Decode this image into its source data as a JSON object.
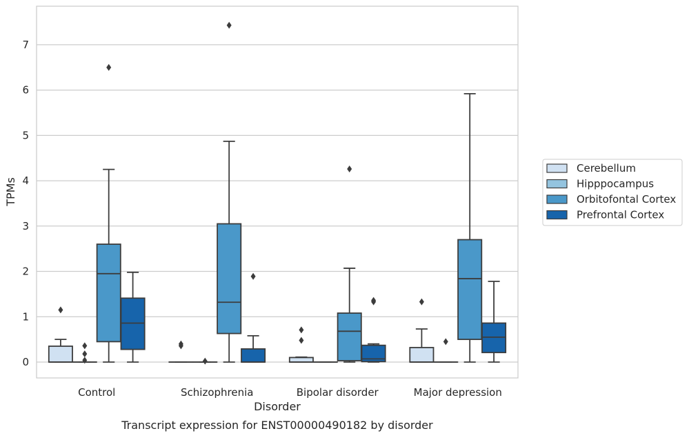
{
  "chart_data": {
    "type": "box",
    "title": "",
    "caption": "Transcript expression for ENST00000490182 by disorder",
    "xlabel": "Disorder",
    "ylabel": "TPMs",
    "ylim": [
      -0.35,
      7.85
    ],
    "yticks": [
      0,
      1,
      2,
      3,
      4,
      5,
      6,
      7
    ],
    "grid": "horizontal",
    "legend_position": "right-center",
    "categories": [
      "Control",
      "Schizophrenia",
      "Bipolar disorder",
      "Major depression"
    ],
    "series": [
      {
        "name": "Cerebellum",
        "color": "#d0e1f2",
        "boxes": [
          {
            "q1": 0.0,
            "median": 0.0,
            "q3": 0.35,
            "whisker_low": 0.0,
            "whisker_high": 0.5,
            "outliers": [
              1.15
            ]
          },
          {
            "q1": 0.0,
            "median": 0.0,
            "q3": 0.0,
            "whisker_low": 0.0,
            "whisker_high": 0.0,
            "outliers": [
              0.36,
              0.4
            ]
          },
          {
            "q1": 0.0,
            "median": 0.0,
            "q3": 0.1,
            "whisker_low": 0.0,
            "whisker_high": 0.11,
            "outliers": [
              0.48,
              0.71
            ]
          },
          {
            "q1": 0.0,
            "median": 0.0,
            "q3": 0.32,
            "whisker_low": 0.0,
            "whisker_high": 0.73,
            "outliers": [
              1.33
            ]
          }
        ]
      },
      {
        "name": "Hipppocampus",
        "color": "#94c4df",
        "boxes": [
          {
            "q1": 0.0,
            "median": 0.0,
            "q3": 0.0,
            "whisker_low": 0.0,
            "whisker_high": 0.0,
            "outliers": [
              0.04,
              0.18,
              0.36
            ]
          },
          {
            "q1": 0.0,
            "median": 0.0,
            "q3": 0.0,
            "whisker_low": 0.0,
            "whisker_high": 0.0,
            "outliers": [
              0.02
            ]
          },
          {
            "q1": 0.0,
            "median": 0.0,
            "q3": 0.0,
            "whisker_low": 0.0,
            "whisker_high": 0.0,
            "outliers": []
          },
          {
            "q1": 0.0,
            "median": 0.0,
            "q3": 0.0,
            "whisker_low": 0.0,
            "whisker_high": 0.0,
            "outliers": [
              0.45
            ]
          }
        ]
      },
      {
        "name": "Orbitofontal Cortex",
        "color": "#4a98c9",
        "boxes": [
          {
            "q1": 0.45,
            "median": 1.95,
            "q3": 2.6,
            "whisker_low": 0.0,
            "whisker_high": 4.25,
            "outliers": [
              6.5
            ]
          },
          {
            "q1": 0.63,
            "median": 1.32,
            "q3": 3.05,
            "whisker_low": 0.0,
            "whisker_high": 4.87,
            "outliers": [
              7.43
            ]
          },
          {
            "q1": 0.03,
            "median": 0.68,
            "q3": 1.08,
            "whisker_low": 0.0,
            "whisker_high": 2.07,
            "outliers": [
              4.26
            ]
          },
          {
            "q1": 0.5,
            "median": 1.84,
            "q3": 2.7,
            "whisker_low": 0.0,
            "whisker_high": 5.92,
            "outliers": []
          }
        ]
      },
      {
        "name": "Prefrontal Cortex",
        "color": "#1764ab",
        "boxes": [
          {
            "q1": 0.28,
            "median": 0.86,
            "q3": 1.41,
            "whisker_low": 0.0,
            "whisker_high": 1.98,
            "outliers": []
          },
          {
            "q1": 0.0,
            "median": 0.0,
            "q3": 0.29,
            "whisker_low": 0.0,
            "whisker_high": 0.58,
            "outliers": [
              1.89
            ]
          },
          {
            "q1": 0.01,
            "median": 0.07,
            "q3": 0.37,
            "whisker_low": 0.0,
            "whisker_high": 0.4,
            "outliers": [
              1.33,
              1.36
            ]
          },
          {
            "q1": 0.21,
            "median": 0.55,
            "q3": 0.86,
            "whisker_low": 0.0,
            "whisker_high": 1.78,
            "outliers": []
          }
        ]
      }
    ]
  }
}
